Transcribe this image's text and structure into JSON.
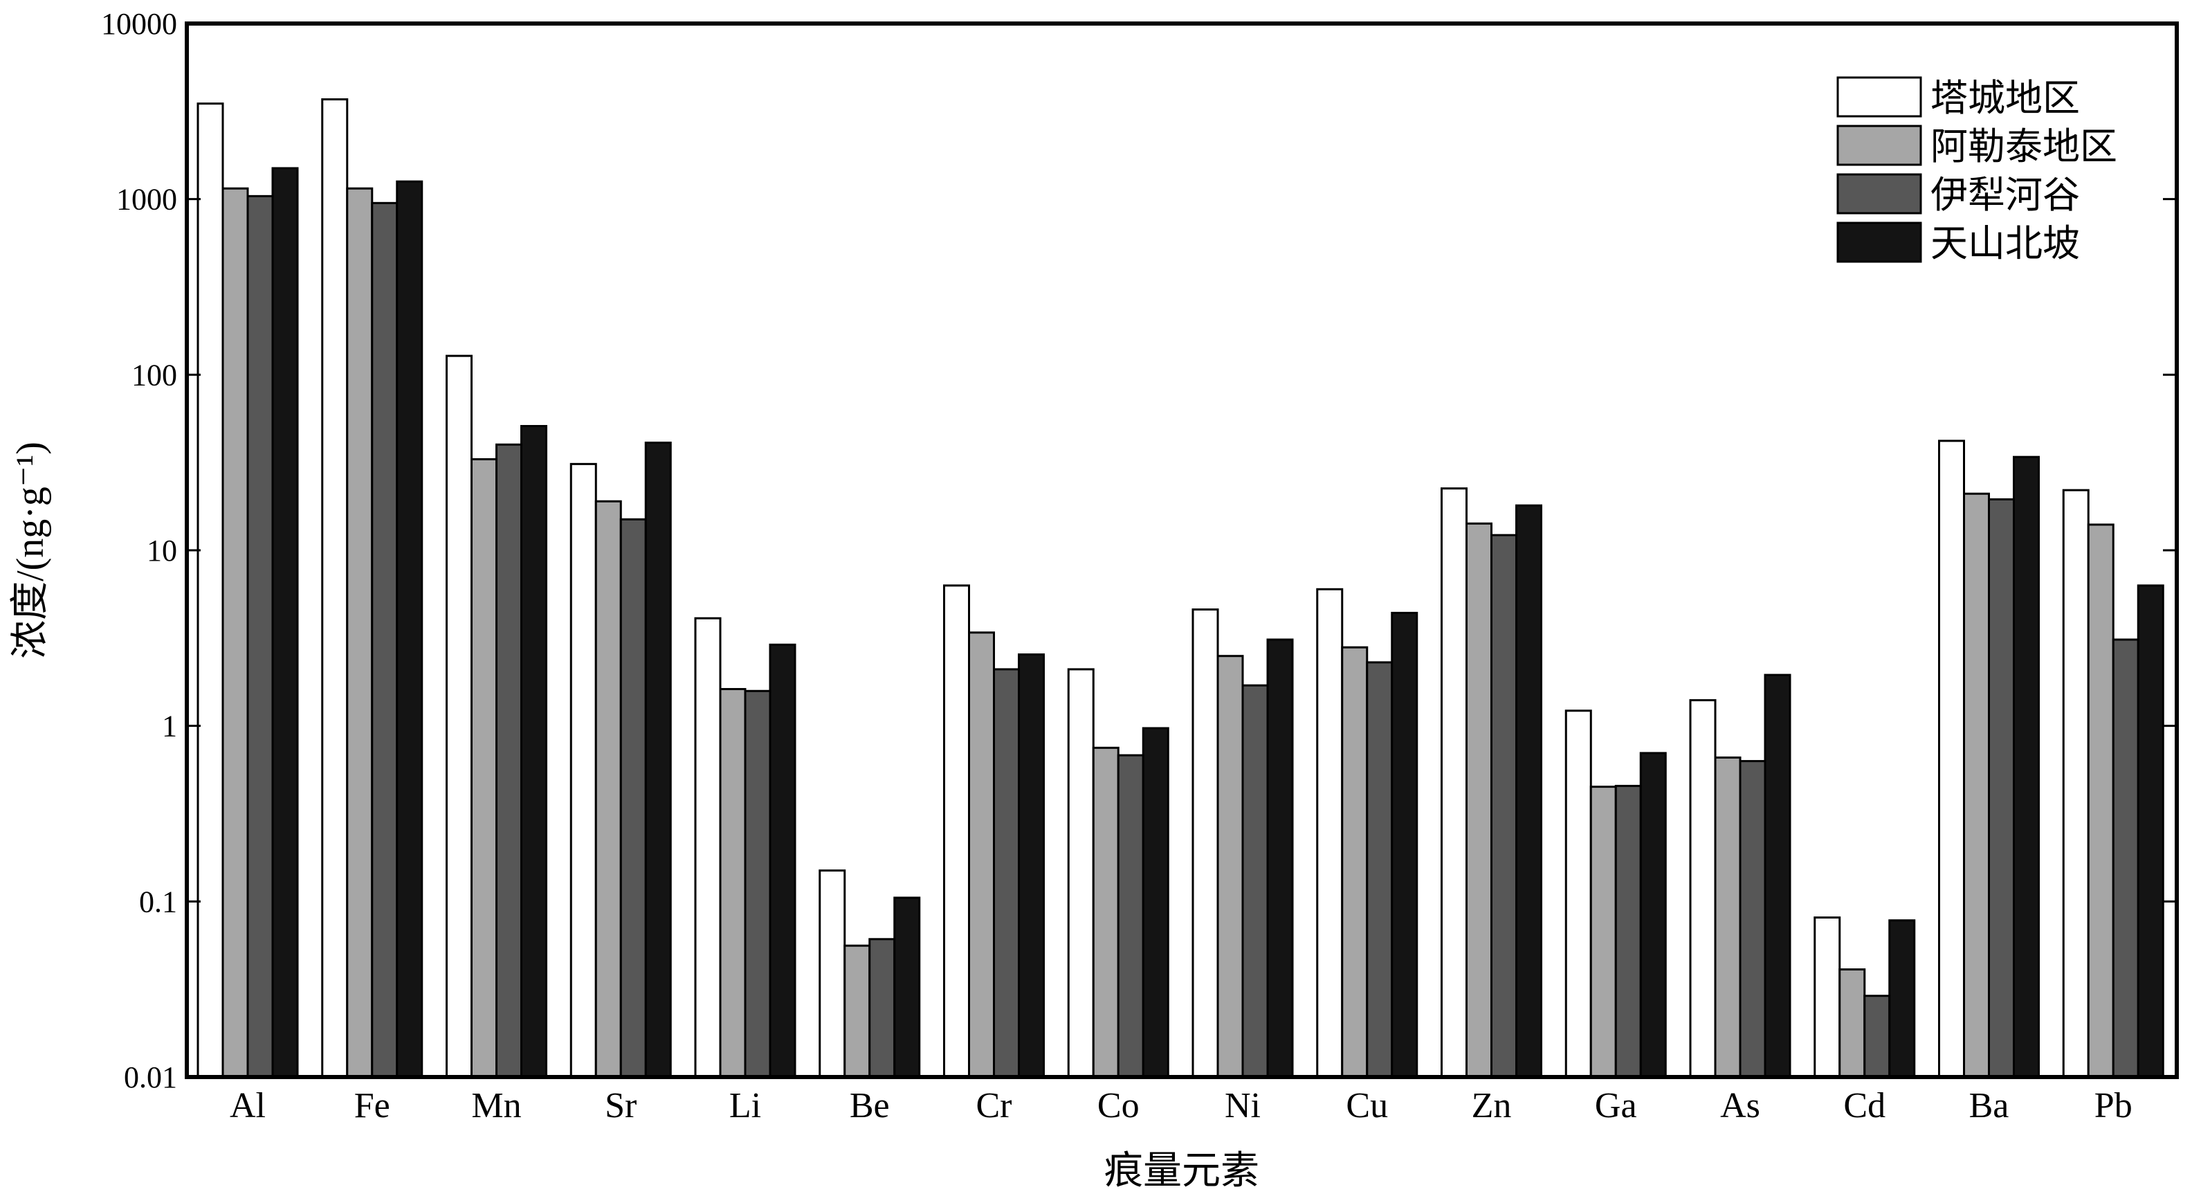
{
  "chart_data": {
    "type": "bar",
    "title": "",
    "xlabel": "痕量元素",
    "ylabel": "浓度/(ng·g⁻¹)",
    "yscale": "log",
    "ylim": [
      0.01,
      10000
    ],
    "yticks": [
      0.01,
      0.1,
      1,
      10,
      100,
      1000,
      10000
    ],
    "ytick_labels": [
      "0.01",
      "0.1",
      "1",
      "10",
      "100",
      "1000",
      "10000"
    ],
    "grid": false,
    "legend_position": "top-right",
    "categories": [
      "Al",
      "Fe",
      "Mn",
      "Sr",
      "Li",
      "Be",
      "Cr",
      "Co",
      "Ni",
      "Cu",
      "Zn",
      "Ga",
      "As",
      "Cd",
      "Ba",
      "Pb"
    ],
    "series": [
      {
        "name": "塔城地区",
        "color": "#ffffff",
        "values": [
          3500,
          3700,
          128,
          31,
          4.1,
          0.15,
          6.3,
          2.1,
          4.6,
          6.0,
          22.5,
          1.22,
          1.4,
          0.081,
          42,
          22
        ]
      },
      {
        "name": "阿勒泰地区",
        "color": "#a6a6a6",
        "values": [
          1150,
          1150,
          33,
          19,
          1.62,
          0.056,
          3.4,
          0.75,
          2.5,
          2.8,
          14.2,
          0.45,
          0.66,
          0.041,
          21,
          14
        ]
      },
      {
        "name": "伊犁河谷",
        "color": "#575757",
        "values": [
          1040,
          950,
          40,
          15,
          1.58,
          0.061,
          2.1,
          0.68,
          1.7,
          2.3,
          12.2,
          0.455,
          0.63,
          0.029,
          19.5,
          3.1
        ]
      },
      {
        "name": "天山北坡",
        "color": "#141414",
        "values": [
          1500,
          1260,
          51,
          41,
          2.9,
          0.105,
          2.55,
          0.97,
          3.1,
          4.4,
          18,
          0.7,
          1.95,
          0.078,
          34,
          6.3
        ]
      }
    ]
  }
}
